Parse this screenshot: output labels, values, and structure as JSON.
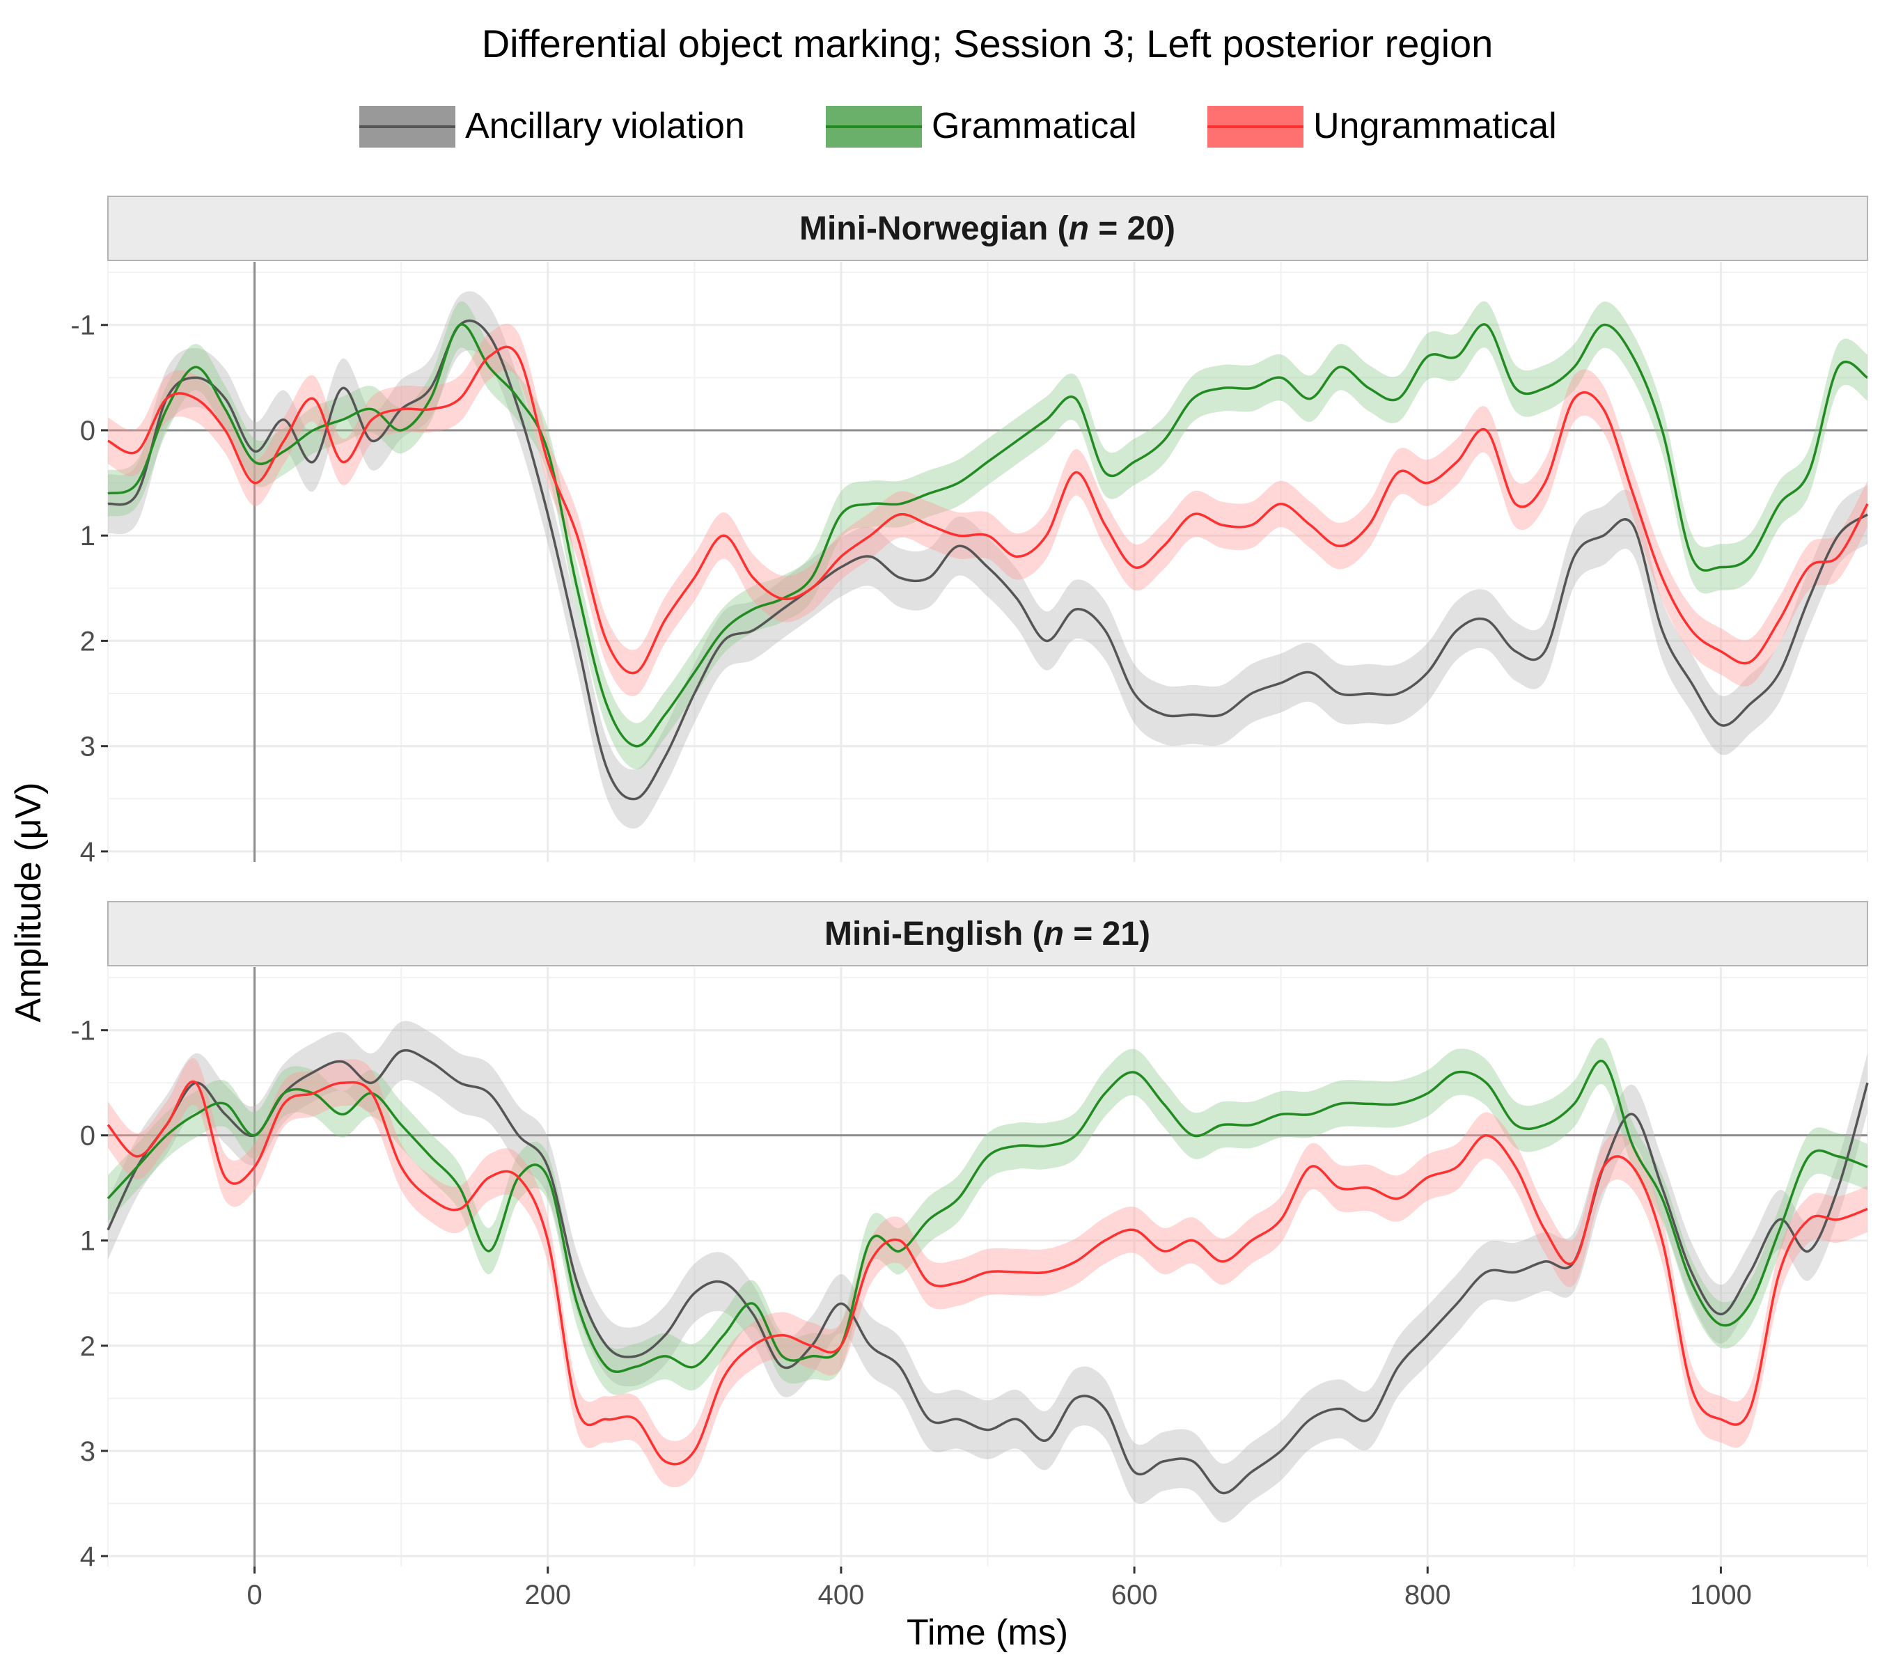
{
  "chart_data": {
    "type": "line",
    "title": "Differential object marking; Session 3; Left posterior region",
    "xlabel": "Time (ms)",
    "ylabel": "Amplitude (μV)",
    "xlim": [
      -100,
      1100
    ],
    "ylim": [
      -1.6,
      4.1
    ],
    "y_reversed": true,
    "x_ticks": [
      0,
      200,
      400,
      600,
      800,
      1000
    ],
    "y_ticks": [
      -1,
      0,
      1,
      2,
      3,
      4
    ],
    "y_tick_labels": [
      "-1",
      "0",
      "1",
      "2",
      "3",
      "4"
    ],
    "legend_position": "top",
    "grid": true,
    "legend": [
      {
        "name": "Ancillary violation",
        "color": "#555555"
      },
      {
        "name": "Grammatical",
        "color": "#228B22"
      },
      {
        "name": "Ungrammatical",
        "color": "#FF3030"
      }
    ],
    "panels": [
      {
        "strip": "Mini-Norwegian (n = 20)",
        "strip_prefix": "Mini-Norwegian (",
        "strip_n": "n",
        "strip_suffix": " = 20)",
        "series": [
          {
            "name": "Ancillary violation",
            "color": "#555555",
            "x": [
              -100,
              -80,
              -60,
              -40,
              -20,
              0,
              20,
              40,
              60,
              80,
              100,
              120,
              140,
              160,
              180,
              200,
              220,
              240,
              260,
              280,
              300,
              320,
              340,
              360,
              380,
              400,
              420,
              440,
              460,
              480,
              500,
              520,
              540,
              560,
              580,
              600,
              620,
              640,
              660,
              680,
              700,
              720,
              740,
              760,
              780,
              800,
              820,
              840,
              860,
              880,
              900,
              920,
              940,
              960,
              980,
              1000,
              1020,
              1040,
              1060,
              1080,
              1100
            ],
            "y": [
              0.7,
              0.6,
              -0.3,
              -0.5,
              -0.3,
              0.2,
              -0.1,
              0.3,
              -0.4,
              0.1,
              -0.2,
              -0.4,
              -1.0,
              -0.9,
              -0.2,
              0.8,
              2.0,
              3.2,
              3.5,
              3.1,
              2.5,
              2.0,
              1.9,
              1.7,
              1.5,
              1.3,
              1.2,
              1.4,
              1.4,
              1.1,
              1.3,
              1.6,
              2.0,
              1.7,
              1.9,
              2.5,
              2.7,
              2.7,
              2.7,
              2.5,
              2.4,
              2.3,
              2.5,
              2.5,
              2.5,
              2.3,
              1.9,
              1.8,
              2.1,
              2.1,
              1.2,
              1.0,
              0.9,
              1.9,
              2.4,
              2.8,
              2.6,
              2.3,
              1.6,
              1.0,
              0.8
            ]
          },
          {
            "name": "Grammatical",
            "color": "#228B22",
            "x": [
              -100,
              -80,
              -60,
              -40,
              -20,
              0,
              20,
              40,
              60,
              80,
              100,
              120,
              140,
              160,
              180,
              200,
              220,
              240,
              260,
              280,
              300,
              320,
              340,
              360,
              380,
              400,
              420,
              440,
              460,
              480,
              500,
              520,
              540,
              560,
              580,
              600,
              620,
              640,
              660,
              680,
              700,
              720,
              740,
              760,
              780,
              800,
              820,
              840,
              860,
              880,
              900,
              920,
              940,
              960,
              980,
              1000,
              1020,
              1040,
              1060,
              1080,
              1100
            ],
            "y": [
              0.6,
              0.5,
              -0.2,
              -0.6,
              -0.2,
              0.3,
              0.2,
              0.0,
              -0.1,
              -0.2,
              0.0,
              -0.3,
              -1.0,
              -0.6,
              -0.3,
              0.2,
              1.5,
              2.6,
              3.0,
              2.7,
              2.3,
              1.9,
              1.7,
              1.6,
              1.4,
              0.8,
              0.7,
              0.7,
              0.6,
              0.5,
              0.3,
              0.1,
              -0.1,
              -0.3,
              0.4,
              0.3,
              0.1,
              -0.3,
              -0.4,
              -0.4,
              -0.5,
              -0.3,
              -0.6,
              -0.4,
              -0.3,
              -0.7,
              -0.7,
              -1.0,
              -0.4,
              -0.4,
              -0.6,
              -1.0,
              -0.7,
              0.0,
              1.2,
              1.3,
              1.2,
              0.7,
              0.4,
              -0.6,
              -0.5
            ]
          },
          {
            "name": "Ungrammatical",
            "color": "#FF3030",
            "x": [
              -100,
              -80,
              -60,
              -40,
              -20,
              0,
              20,
              40,
              60,
              80,
              100,
              120,
              140,
              160,
              180,
              200,
              220,
              240,
              260,
              280,
              300,
              320,
              340,
              360,
              380,
              400,
              420,
              440,
              460,
              480,
              500,
              520,
              540,
              560,
              580,
              600,
              620,
              640,
              660,
              680,
              700,
              720,
              740,
              760,
              780,
              800,
              820,
              840,
              860,
              880,
              900,
              920,
              940,
              960,
              980,
              1000,
              1020,
              1040,
              1060,
              1080,
              1100
            ],
            "y": [
              0.1,
              0.2,
              -0.3,
              -0.3,
              0.0,
              0.5,
              0.1,
              -0.3,
              0.3,
              -0.1,
              -0.2,
              -0.2,
              -0.3,
              -0.7,
              -0.7,
              0.3,
              1.0,
              2.0,
              2.3,
              1.8,
              1.4,
              1.0,
              1.4,
              1.6,
              1.5,
              1.2,
              1.0,
              0.8,
              0.9,
              1.0,
              1.0,
              1.2,
              1.0,
              0.4,
              0.9,
              1.3,
              1.1,
              0.8,
              0.9,
              0.9,
              0.7,
              0.9,
              1.1,
              0.9,
              0.4,
              0.5,
              0.3,
              0.0,
              0.7,
              0.5,
              -0.3,
              -0.2,
              0.6,
              1.4,
              1.9,
              2.1,
              2.2,
              1.8,
              1.3,
              1.2,
              0.7
            ]
          }
        ]
      },
      {
        "strip": "Mini-English (n = 21)",
        "strip_prefix": "Mini-English (",
        "strip_n": "n",
        "strip_suffix": " = 21)",
        "series": [
          {
            "name": "Ancillary violation",
            "color": "#555555",
            "x": [
              -100,
              -80,
              -60,
              -40,
              -20,
              0,
              20,
              40,
              60,
              80,
              100,
              120,
              140,
              160,
              180,
              200,
              220,
              240,
              260,
              280,
              300,
              320,
              340,
              360,
              380,
              400,
              420,
              440,
              460,
              480,
              500,
              520,
              540,
              560,
              580,
              600,
              620,
              640,
              660,
              680,
              700,
              720,
              740,
              760,
              780,
              800,
              820,
              840,
              860,
              880,
              900,
              920,
              940,
              960,
              980,
              1000,
              1020,
              1040,
              1060,
              1080,
              1100
            ],
            "y": [
              0.9,
              0.3,
              -0.1,
              -0.5,
              -0.2,
              0.0,
              -0.4,
              -0.6,
              -0.7,
              -0.5,
              -0.8,
              -0.7,
              -0.5,
              -0.4,
              0.0,
              0.3,
              1.4,
              2.0,
              2.1,
              1.9,
              1.5,
              1.4,
              1.7,
              2.2,
              2.0,
              1.6,
              2.0,
              2.2,
              2.7,
              2.7,
              2.8,
              2.7,
              2.9,
              2.5,
              2.6,
              3.2,
              3.1,
              3.1,
              3.4,
              3.2,
              3.0,
              2.7,
              2.6,
              2.7,
              2.2,
              1.9,
              1.6,
              1.3,
              1.3,
              1.2,
              1.2,
              0.3,
              -0.2,
              0.5,
              1.3,
              1.7,
              1.3,
              0.8,
              1.1,
              0.5,
              -0.5
            ]
          },
          {
            "name": "Grammatical",
            "color": "#228B22",
            "x": [
              -100,
              -80,
              -60,
              -40,
              -20,
              0,
              20,
              40,
              60,
              80,
              100,
              120,
              140,
              160,
              180,
              200,
              220,
              240,
              260,
              280,
              300,
              320,
              340,
              360,
              380,
              400,
              420,
              440,
              460,
              480,
              500,
              520,
              540,
              560,
              580,
              600,
              620,
              640,
              660,
              680,
              700,
              720,
              740,
              760,
              780,
              800,
              820,
              840,
              860,
              880,
              900,
              920,
              940,
              960,
              980,
              1000,
              1020,
              1040,
              1060,
              1080,
              1100
            ],
            "y": [
              0.6,
              0.3,
              0.0,
              -0.2,
              -0.3,
              0.0,
              -0.4,
              -0.4,
              -0.2,
              -0.4,
              -0.1,
              0.2,
              0.5,
              1.1,
              0.4,
              0.4,
              1.6,
              2.2,
              2.2,
              2.1,
              2.2,
              1.9,
              1.6,
              2.1,
              2.1,
              2.0,
              1.0,
              1.1,
              0.8,
              0.6,
              0.2,
              0.1,
              0.1,
              0.0,
              -0.4,
              -0.6,
              -0.3,
              0.0,
              -0.1,
              -0.1,
              -0.2,
              -0.2,
              -0.3,
              -0.3,
              -0.3,
              -0.4,
              -0.6,
              -0.5,
              -0.1,
              -0.1,
              -0.3,
              -0.7,
              0.1,
              0.6,
              1.4,
              1.8,
              1.6,
              0.9,
              0.2,
              0.2,
              0.3
            ]
          },
          {
            "name": "Ungrammatical",
            "color": "#FF3030",
            "x": [
              -100,
              -80,
              -60,
              -40,
              -20,
              0,
              20,
              40,
              60,
              80,
              100,
              120,
              140,
              160,
              180,
              200,
              220,
              240,
              260,
              280,
              300,
              320,
              340,
              360,
              380,
              400,
              420,
              440,
              460,
              480,
              500,
              520,
              540,
              560,
              580,
              600,
              620,
              640,
              660,
              680,
              700,
              720,
              740,
              760,
              780,
              800,
              820,
              840,
              860,
              880,
              900,
              920,
              940,
              960,
              980,
              1000,
              1020,
              1040,
              1060,
              1080,
              1100
            ],
            "y": [
              -0.1,
              0.2,
              -0.1,
              -0.5,
              0.4,
              0.3,
              -0.3,
              -0.4,
              -0.5,
              -0.4,
              0.3,
              0.6,
              0.7,
              0.4,
              0.4,
              1.0,
              2.6,
              2.7,
              2.7,
              3.1,
              3.0,
              2.3,
              2.0,
              1.9,
              2.0,
              2.0,
              1.2,
              1.0,
              1.4,
              1.4,
              1.3,
              1.3,
              1.3,
              1.2,
              1.0,
              0.9,
              1.1,
              1.0,
              1.2,
              1.0,
              0.8,
              0.3,
              0.5,
              0.5,
              0.6,
              0.4,
              0.3,
              0.0,
              0.3,
              0.9,
              1.2,
              0.3,
              0.3,
              1.0,
              2.4,
              2.7,
              2.6,
              1.3,
              0.8,
              0.8,
              0.7
            ]
          }
        ]
      }
    ]
  }
}
